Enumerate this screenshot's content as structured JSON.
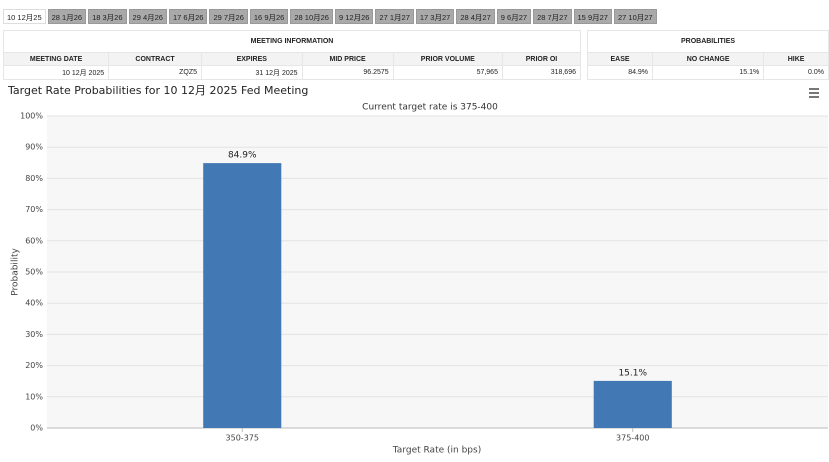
{
  "tabs": [
    "10 12月25",
    "28 1月26",
    "18 3月26",
    "29 4月26",
    "17 6月26",
    "29 7月26",
    "16 9月26",
    "28 10月26",
    "9 12月26",
    "27 1月27",
    "17 3月27",
    "28 4月27",
    "9 6月27",
    "28 7月27",
    "15 9月27",
    "27 10月27"
  ],
  "meeting_table": {
    "title": "MEETING INFORMATION",
    "headers": [
      "MEETING DATE",
      "CONTRACT",
      "EXPIRES",
      "MID PRICE",
      "PRIOR VOLUME",
      "PRIOR OI"
    ],
    "rows": [
      [
        "10 12月 2025",
        "ZQZ5",
        "31 12月 2025",
        "96.2575",
        "57,965",
        "318,696"
      ]
    ]
  },
  "probability_table": {
    "title": "PROBABILITIES",
    "headers": [
      "EASE",
      "NO CHANGE",
      "HIKE"
    ],
    "rows": [
      [
        "84.9%",
        "15.1%",
        "0.0%"
      ]
    ]
  },
  "chart_data": {
    "type": "bar",
    "title": "Target Rate Probabilities for 10 12月 2025 Fed Meeting",
    "subtitle": "Current target rate is 375-400",
    "x_label": "Target Rate (in bps)",
    "y_label": "Probability",
    "categories": [
      "350-375",
      "375-400"
    ],
    "values": [
      84.9,
      15.1
    ],
    "value_labels": [
      "84.9%",
      "15.1%"
    ],
    "color": "#4279b5",
    "ylim": [
      0,
      100
    ],
    "yticks": [
      {
        "value": 0,
        "label": "0%"
      },
      {
        "value": 10,
        "label": "10%"
      },
      {
        "value": 20,
        "label": "20%"
      },
      {
        "value": 30,
        "label": "30%"
      },
      {
        "value": 40,
        "label": "40%"
      },
      {
        "value": 50,
        "label": "50%"
      },
      {
        "value": 60,
        "label": "60%"
      },
      {
        "value": 70,
        "label": "70%"
      },
      {
        "value": 80,
        "label": "80%"
      },
      {
        "value": 90,
        "label": "90%"
      },
      {
        "value": 100,
        "label": "100%"
      }
    ],
    "grid": true
  }
}
